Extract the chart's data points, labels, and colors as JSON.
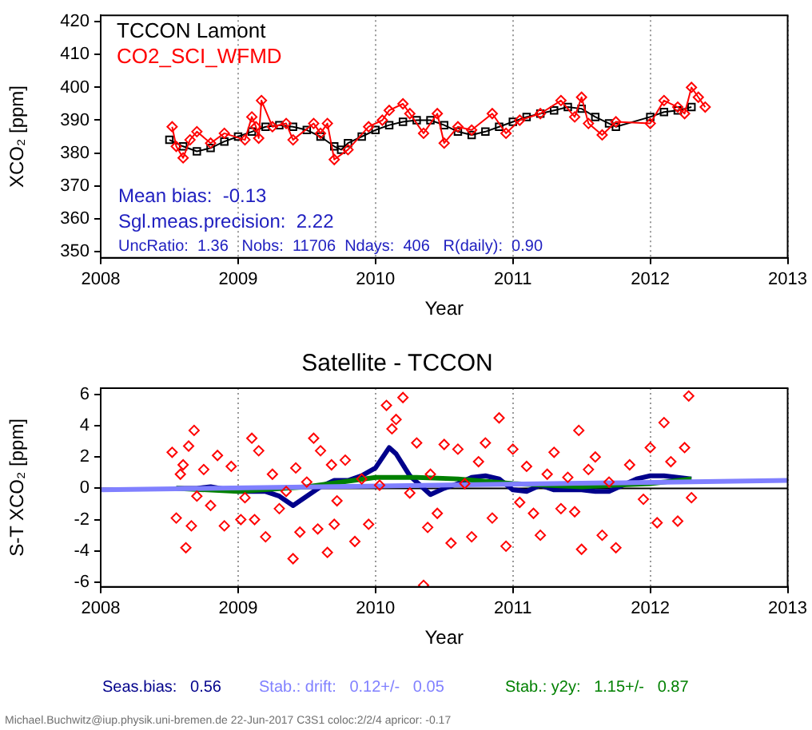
{
  "chart_data": [
    {
      "type": "line",
      "xlabel": "Year",
      "ylabel": "XCO₂ [ppm]",
      "xlim": [
        2008,
        2013
      ],
      "xticks": [
        2008,
        2009,
        2010,
        2011,
        2012,
        2013
      ],
      "ylim": [
        348,
        422
      ],
      "yticks": [
        350,
        360,
        370,
        380,
        390,
        400,
        410,
        420
      ],
      "grid": "x",
      "legend": "top left",
      "series": [
        {
          "name": "CO2_SCI_WFMD",
          "color": "#ff0000",
          "marker": "diamond",
          "x": [
            2008.52,
            2008.55,
            2008.6,
            2008.65,
            2008.7,
            2008.8,
            2008.9,
            2009.05,
            2009.1,
            2009.13,
            2009.15,
            2009.17,
            2009.25,
            2009.35,
            2009.4,
            2009.55,
            2009.6,
            2009.65,
            2009.7,
            2009.8,
            2009.95,
            2010.05,
            2010.1,
            2010.2,
            2010.25,
            2010.35,
            2010.45,
            2010.5,
            2010.6,
            2010.7,
            2010.85,
            2010.95,
            2011.05,
            2011.2,
            2011.35,
            2011.45,
            2011.5,
            2011.55,
            2011.65,
            2011.75,
            2012.0,
            2012.1,
            2012.2,
            2012.25,
            2012.3,
            2012.35,
            2012.4
          ],
          "values": [
            388,
            382,
            378.5,
            384,
            386.5,
            383,
            386,
            384,
            391,
            388,
            384.5,
            396,
            388,
            389,
            384,
            389,
            386,
            389,
            378,
            381,
            388,
            390,
            393,
            395,
            392,
            386,
            392,
            383,
            388,
            387,
            392,
            386,
            390,
            392,
            396,
            391,
            397,
            389,
            385.5,
            389.5,
            389,
            396,
            394,
            392,
            400,
            397,
            394
          ]
        },
        {
          "name": "TCCON Lamont",
          "color": "#000000",
          "marker": "square",
          "x": [
            2008.5,
            2008.6,
            2008.7,
            2008.8,
            2008.9,
            2009.0,
            2009.1,
            2009.2,
            2009.3,
            2009.4,
            2009.5,
            2009.6,
            2009.7,
            2009.75,
            2009.8,
            2009.9,
            2010.0,
            2010.1,
            2010.2,
            2010.3,
            2010.4,
            2010.5,
            2010.6,
            2010.7,
            2010.8,
            2010.9,
            2011.0,
            2011.1,
            2011.2,
            2011.3,
            2011.4,
            2011.5,
            2011.6,
            2011.7,
            2011.75,
            2012.0,
            2012.1,
            2012.2,
            2012.3
          ],
          "values": [
            384,
            382,
            380.5,
            381.5,
            383.5,
            385,
            386.5,
            388,
            388.5,
            388,
            387,
            385,
            382,
            381,
            383,
            385,
            387,
            388.5,
            389.5,
            390,
            390,
            388.5,
            386.5,
            385.5,
            386.5,
            388,
            389.5,
            391,
            392,
            393,
            394,
            393.5,
            391,
            389,
            388,
            391,
            392.5,
            393,
            394
          ]
        }
      ],
      "annotations": [
        "Mean bias:  -0.13",
        "Sgl.meas.precision:  2.22",
        "UncRatio:  1.36   Nobs:  11706  Ndays:  406   R(daily):  0.90"
      ]
    },
    {
      "type": "scatter",
      "title": "Satellite - TCCON",
      "xlabel": "Year",
      "ylabel": "S-T XCO₂ [ppm]",
      "xlim": [
        2008,
        2013
      ],
      "xticks": [
        2008,
        2009,
        2010,
        2011,
        2012,
        2013
      ],
      "ylim": [
        -6.3,
        6.4
      ],
      "yticks": [
        -6,
        -4,
        -2,
        0,
        2,
        4,
        6
      ],
      "grid": "x",
      "ref_lines": [
        {
          "axis": "y",
          "value": 0,
          "color": "#000000"
        }
      ],
      "series": [
        {
          "type": "scatter",
          "color": "#ff0000",
          "marker": "diamond",
          "x": [
            2008.52,
            2008.55,
            2008.58,
            2008.6,
            2008.62,
            2008.64,
            2008.66,
            2008.68,
            2008.7,
            2008.75,
            2008.8,
            2008.85,
            2008.9,
            2008.95,
            2009.02,
            2009.05,
            2009.1,
            2009.12,
            2009.15,
            2009.2,
            2009.25,
            2009.3,
            2009.35,
            2009.4,
            2009.42,
            2009.45,
            2009.5,
            2009.55,
            2009.58,
            2009.6,
            2009.65,
            2009.68,
            2009.7,
            2009.72,
            2009.78,
            2009.85,
            2009.9,
            2009.95,
            2010.03,
            2010.08,
            2010.12,
            2010.15,
            2010.2,
            2010.25,
            2010.3,
            2010.35,
            2010.38,
            2010.4,
            2010.45,
            2010.5,
            2010.55,
            2010.6,
            2010.65,
            2010.7,
            2010.75,
            2010.8,
            2010.85,
            2010.9,
            2010.95,
            2011.0,
            2011.05,
            2011.1,
            2011.15,
            2011.2,
            2011.25,
            2011.3,
            2011.35,
            2011.4,
            2011.45,
            2011.48,
            2011.5,
            2011.55,
            2011.6,
            2011.65,
            2011.7,
            2011.75,
            2011.85,
            2011.95,
            2012.0,
            2012.05,
            2012.1,
            2012.15,
            2012.2,
            2012.25,
            2012.28,
            2012.3
          ],
          "values": [
            2.3,
            -1.9,
            0.9,
            1.5,
            -3.8,
            2.7,
            -2.4,
            3.7,
            -0.5,
            1.2,
            -1.1,
            2.1,
            -2.4,
            1.4,
            -2.0,
            -0.6,
            3.2,
            -2.0,
            2.4,
            -3.1,
            0.9,
            -1.3,
            -0.2,
            -4.5,
            1.3,
            -2.8,
            0.4,
            3.2,
            -2.6,
            2.4,
            -4.1,
            1.5,
            -2.3,
            -0.8,
            1.8,
            -3.4,
            0.6,
            -2.3,
            0.2,
            5.3,
            3.8,
            4.4,
            5.8,
            -0.3,
            2.9,
            -6.2,
            -2.5,
            0.9,
            -1.6,
            2.8,
            -3.5,
            2.5,
            0.3,
            -3.1,
            1.7,
            2.9,
            -1.9,
            4.5,
            -3.7,
            2.5,
            -0.9,
            1.4,
            -1.6,
            -3.0,
            0.9,
            2.3,
            -1.3,
            0.7,
            -1.5,
            3.7,
            -3.9,
            1.2,
            2.0,
            -3.0,
            0.4,
            -3.8,
            1.5,
            -0.7,
            2.6,
            -2.2,
            4.2,
            1.7,
            -2.1,
            2.6,
            5.9,
            -0.6
          ]
        },
        {
          "type": "line",
          "color": "#8080ff",
          "marker": "none",
          "x": [
            2008,
            2013
          ],
          "values": [
            -0.1,
            0.5
          ]
        },
        {
          "type": "line",
          "color": "#008000",
          "marker": "none",
          "x": [
            2008.55,
            2009.0,
            2009.5,
            2010.0,
            2010.3,
            2010.6,
            2011.0,
            2011.5,
            2012.0,
            2012.3
          ],
          "values": [
            0,
            -0.2,
            0.1,
            0.7,
            0.7,
            0.6,
            0.3,
            0.1,
            0.3,
            0.6
          ]
        },
        {
          "type": "line",
          "color": "#00008b",
          "marker": "none",
          "x": [
            2008.55,
            2008.7,
            2008.8,
            2009.0,
            2009.2,
            2009.3,
            2009.4,
            2009.5,
            2009.6,
            2009.7,
            2009.8,
            2009.9,
            2010.0,
            2010.1,
            2010.15,
            2010.25,
            2010.4,
            2010.5,
            2010.6,
            2010.7,
            2010.8,
            2010.9,
            2011.0,
            2011.1,
            2011.2,
            2011.3,
            2011.5,
            2011.6,
            2011.7,
            2011.8,
            2011.9,
            2012.0,
            2012.1,
            2012.2,
            2012.3
          ],
          "values": [
            0,
            0,
            0.1,
            -0.2,
            -0.2,
            -0.5,
            -1.1,
            -0.5,
            0.1,
            0.5,
            0.5,
            0.8,
            1.3,
            2.6,
            2.2,
            0.8,
            -0.4,
            0,
            0.3,
            0.7,
            0.8,
            0.6,
            -0.1,
            -0.2,
            0.2,
            -0.1,
            -0.1,
            -0.2,
            -0.2,
            0.2,
            0.6,
            0.8,
            0.8,
            0.7,
            0.6
          ]
        }
      ],
      "annotations": [
        "Seas.bias:   0.56",
        "Stab.: drift:   0.12+/-   0.05",
        "Stab.: y2y:   1.15+/-   0.87",
        "Michael.Buchwitz@iup.physik.uni-bremen.de 22-Jun-2017 C3S1 coloc:2/2/4 apricor: -0.17"
      ]
    }
  ]
}
